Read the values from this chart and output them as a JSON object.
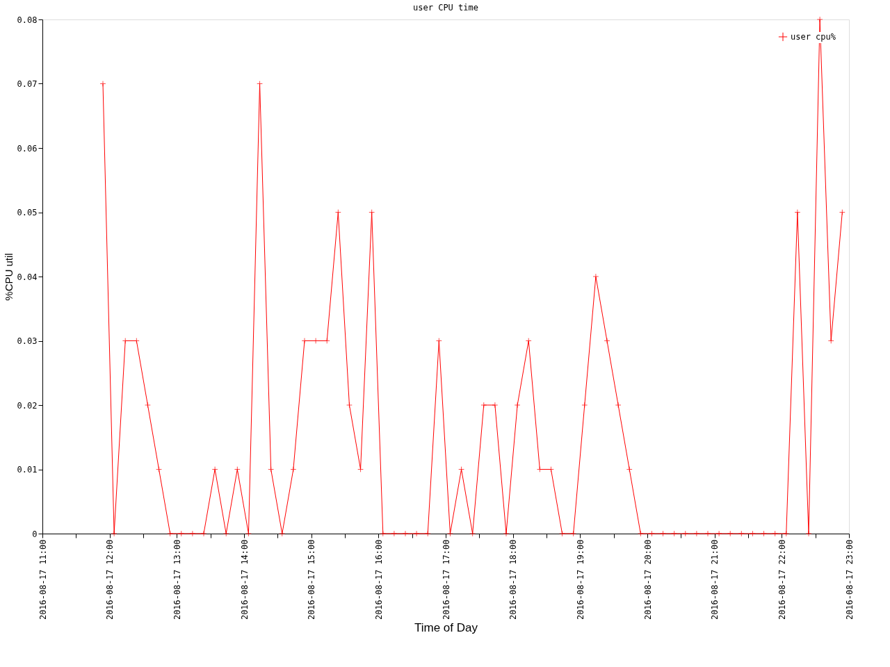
{
  "chart_data": {
    "type": "line",
    "title": "user CPU time",
    "xlabel": "Time of Day",
    "ylabel": "%CPU util",
    "x": [
      "2016-08-17T11:54",
      "2016-08-17T12:04",
      "2016-08-17T12:14",
      "2016-08-17T12:24",
      "2016-08-17T12:34",
      "2016-08-17T12:44",
      "2016-08-17T12:54",
      "2016-08-17T13:04",
      "2016-08-17T13:14",
      "2016-08-17T13:24",
      "2016-08-17T13:34",
      "2016-08-17T13:44",
      "2016-08-17T13:54",
      "2016-08-17T14:04",
      "2016-08-17T14:14",
      "2016-08-17T14:24",
      "2016-08-17T14:34",
      "2016-08-17T14:44",
      "2016-08-17T14:54",
      "2016-08-17T15:04",
      "2016-08-17T15:14",
      "2016-08-17T15:24",
      "2016-08-17T15:34",
      "2016-08-17T15:44",
      "2016-08-17T15:54",
      "2016-08-17T16:04",
      "2016-08-17T16:14",
      "2016-08-17T16:24",
      "2016-08-17T16:34",
      "2016-08-17T16:44",
      "2016-08-17T16:54",
      "2016-08-17T17:04",
      "2016-08-17T17:14",
      "2016-08-17T17:24",
      "2016-08-17T17:34",
      "2016-08-17T17:44",
      "2016-08-17T17:54",
      "2016-08-17T18:04",
      "2016-08-17T18:14",
      "2016-08-17T18:24",
      "2016-08-17T18:34",
      "2016-08-17T18:44",
      "2016-08-17T18:54",
      "2016-08-17T19:04",
      "2016-08-17T19:14",
      "2016-08-17T19:24",
      "2016-08-17T19:34",
      "2016-08-17T19:44",
      "2016-08-17T19:54",
      "2016-08-17T20:04",
      "2016-08-17T20:14",
      "2016-08-17T20:24",
      "2016-08-17T20:34",
      "2016-08-17T20:44",
      "2016-08-17T20:54",
      "2016-08-17T21:04",
      "2016-08-17T21:14",
      "2016-08-17T21:24",
      "2016-08-17T21:34",
      "2016-08-17T21:44",
      "2016-08-17T21:54",
      "2016-08-17T22:04",
      "2016-08-17T22:14",
      "2016-08-17T22:24",
      "2016-08-17T22:34",
      "2016-08-17T22:44",
      "2016-08-17T22:54"
    ],
    "series": [
      {
        "name": "user cpu%",
        "color": "#ff0000",
        "values": [
          0.07,
          0,
          0.03,
          0.03,
          0.02,
          0.01,
          0,
          0,
          0,
          0,
          0.01,
          0,
          0.01,
          0,
          0.07,
          0.01,
          0,
          0.01,
          0.03,
          0.03,
          0.03,
          0.05,
          0.02,
          0.01,
          0.05,
          0,
          0,
          0,
          0,
          0,
          0.03,
          0,
          0.01,
          0,
          0.02,
          0.02,
          0,
          0.02,
          0.03,
          0.01,
          0.01,
          0,
          0,
          0.02,
          0.04,
          0.03,
          0.02,
          0.01,
          0,
          0,
          0,
          0,
          0,
          0,
          0,
          0,
          0,
          0,
          0,
          0,
          0,
          0,
          0.05,
          0,
          0.08,
          0.03,
          0.05
        ]
      }
    ],
    "xlim": [
      "2016-08-17T11:00",
      "2016-08-17T23:00"
    ],
    "xticks": [
      {
        "value": "2016-08-17T11:00",
        "label": "2016-08-17 11:00"
      },
      {
        "value": "2016-08-17T11:30",
        "label": null
      },
      {
        "value": "2016-08-17T12:00",
        "label": "2016-08-17 12:00"
      },
      {
        "value": "2016-08-17T12:30",
        "label": null
      },
      {
        "value": "2016-08-17T13:00",
        "label": "2016-08-17 13:00"
      },
      {
        "value": "2016-08-17T13:30",
        "label": null
      },
      {
        "value": "2016-08-17T14:00",
        "label": "2016-08-17 14:00"
      },
      {
        "value": "2016-08-17T14:30",
        "label": null
      },
      {
        "value": "2016-08-17T15:00",
        "label": "2016-08-17 15:00"
      },
      {
        "value": "2016-08-17T15:30",
        "label": null
      },
      {
        "value": "2016-08-17T16:00",
        "label": "2016-08-17 16:00"
      },
      {
        "value": "2016-08-17T16:30",
        "label": null
      },
      {
        "value": "2016-08-17T17:00",
        "label": "2016-08-17 17:00"
      },
      {
        "value": "2016-08-17T17:30",
        "label": null
      },
      {
        "value": "2016-08-17T18:00",
        "label": "2016-08-17 18:00"
      },
      {
        "value": "2016-08-17T18:30",
        "label": null
      },
      {
        "value": "2016-08-17T19:00",
        "label": "2016-08-17 19:00"
      },
      {
        "value": "2016-08-17T19:30",
        "label": null
      },
      {
        "value": "2016-08-17T20:00",
        "label": "2016-08-17 20:00"
      },
      {
        "value": "2016-08-17T20:30",
        "label": null
      },
      {
        "value": "2016-08-17T21:00",
        "label": "2016-08-17 21:00"
      },
      {
        "value": "2016-08-17T21:30",
        "label": null
      },
      {
        "value": "2016-08-17T22:00",
        "label": "2016-08-17 22:00"
      },
      {
        "value": "2016-08-17T22:30",
        "label": null
      },
      {
        "value": "2016-08-17T23:00",
        "label": "2016-08-17 23:00"
      }
    ],
    "ylim": [
      0,
      0.08
    ],
    "yticks": [
      0,
      0.01,
      0.02,
      0.03,
      0.04,
      0.05,
      0.06,
      0.07,
      0.08
    ],
    "grid": false,
    "legend": "top right",
    "marker": "cross",
    "line_style": "solid"
  }
}
